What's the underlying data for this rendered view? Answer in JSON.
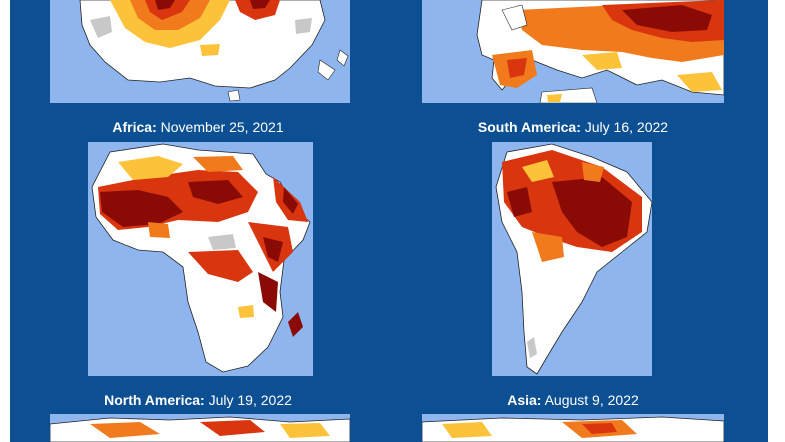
{
  "colors": {
    "panel_background": "#0c4f93",
    "ocean": "#8fb5ef",
    "land": "#ffffff",
    "no_data": "#c8c8c8",
    "heat_light": "#fcc33a",
    "heat_medium": "#f07a1c",
    "heat_strong": "#d9350f",
    "heat_extreme": "#8a0b05"
  },
  "maps": [
    {
      "region": "Australia",
      "caption_region": "",
      "caption_date": ""
    },
    {
      "region": "Europe",
      "caption_region": "",
      "caption_date": ""
    },
    {
      "region": "Africa",
      "caption_region": "Africa:",
      "caption_date": "November 25, 2021"
    },
    {
      "region": "South America",
      "caption_region": "South America:",
      "caption_date": "July 16, 2022"
    },
    {
      "region": "North America",
      "caption_region": "North America:",
      "caption_date": "July 19, 2022"
    },
    {
      "region": "Asia",
      "caption_region": "Asia:",
      "caption_date": "August 9, 2022"
    }
  ]
}
